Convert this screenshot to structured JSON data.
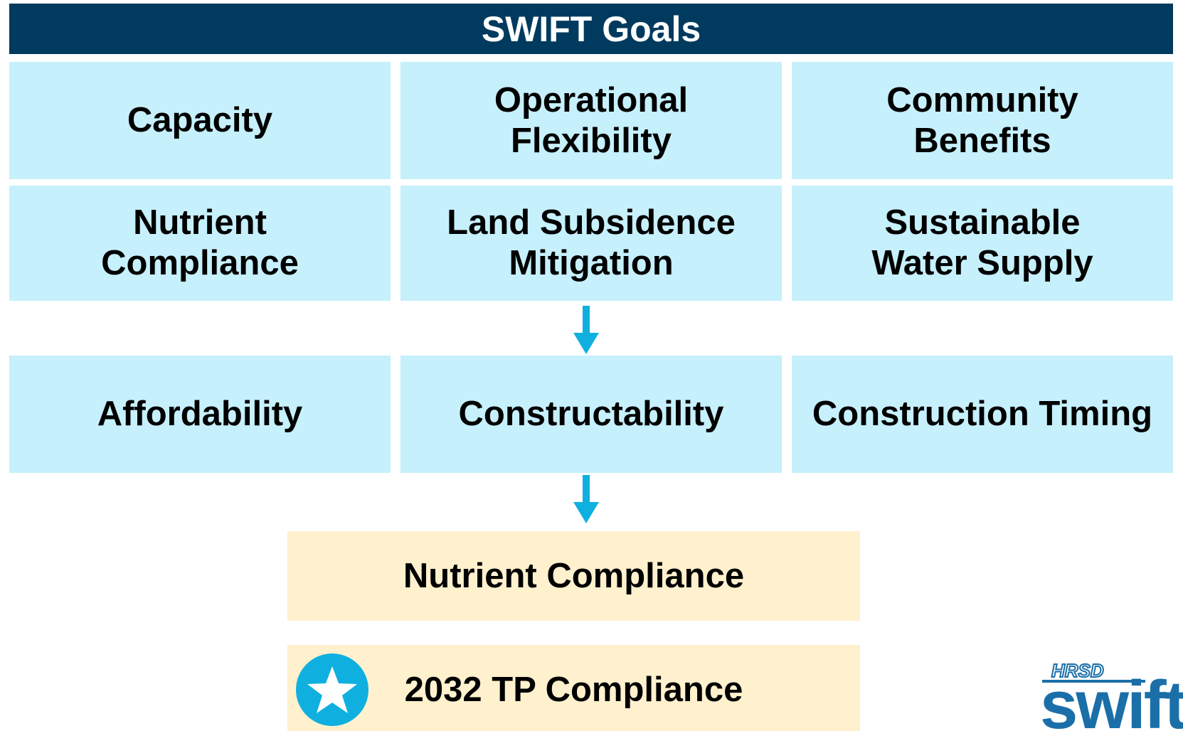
{
  "header": {
    "title": "SWIFT Goals"
  },
  "goals": [
    [
      [
        "Capacity"
      ],
      [
        "Operational",
        "Flexibility"
      ],
      [
        "Community",
        "Benefits"
      ]
    ],
    [
      [
        "Nutrient",
        "Compliance"
      ],
      [
        "Land Subsidence",
        "Mitigation"
      ],
      [
        "Sustainable",
        "Water Supply"
      ]
    ]
  ],
  "criteria": [
    [
      "Affordability"
    ],
    [
      "Constructability"
    ],
    [
      "Construction Timing"
    ]
  ],
  "outcomes": [
    "Nutrient Compliance",
    "2032 TP Compliance"
  ],
  "logo": {
    "top": "HRSD",
    "word": "swift"
  }
}
